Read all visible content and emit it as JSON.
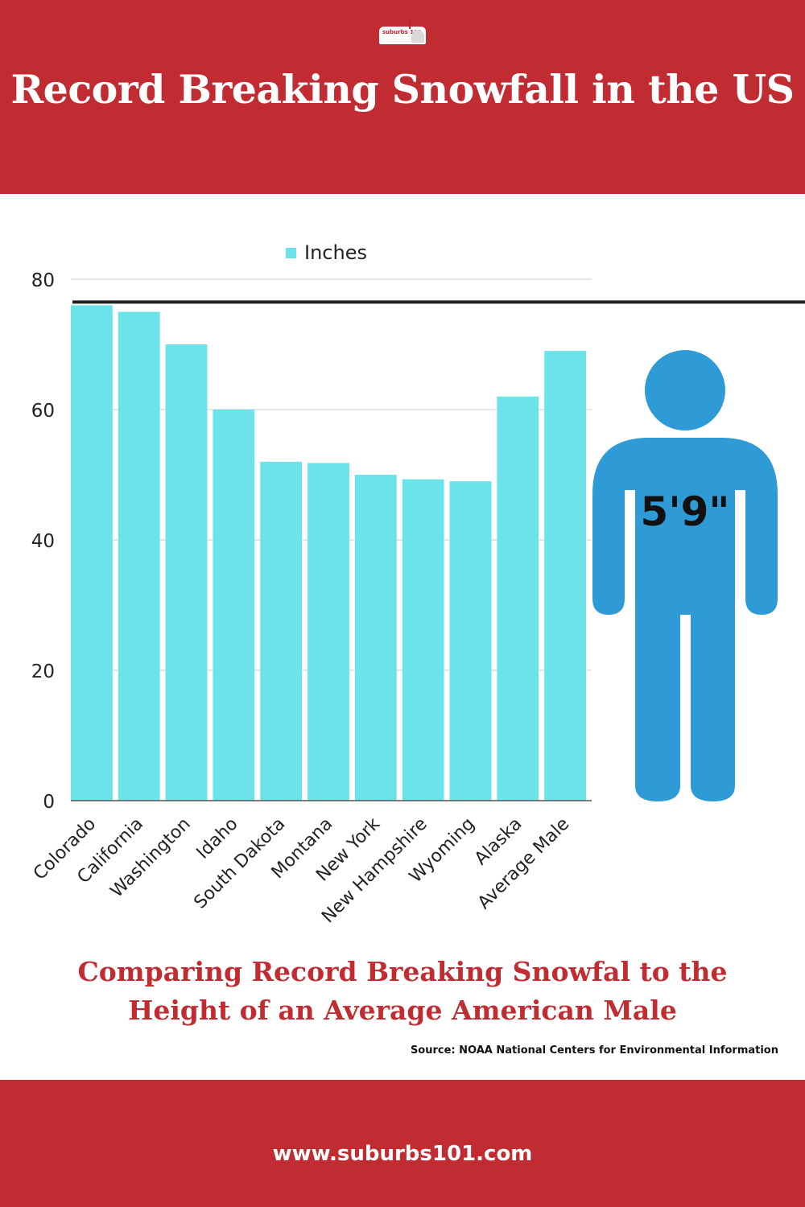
{
  "header": {
    "logo_text": "suburbs 101",
    "title": "Record Breaking Snowfall in the US"
  },
  "chart_data": {
    "type": "bar",
    "categories": [
      "Colorado",
      "California",
      "Washington",
      "Idaho",
      "South Dakota",
      "Montana",
      "New York",
      "New Hampshire",
      "Wyoming",
      "Alaska",
      "Average Male"
    ],
    "series": [
      {
        "name": "Inches",
        "values": [
          76,
          75,
          70,
          60,
          52,
          51.8,
          50,
          49.3,
          49,
          62,
          69
        ]
      }
    ],
    "ylim": [
      0,
      80
    ],
    "yticks": [
      0,
      20,
      40,
      60,
      80
    ],
    "ytick_labels": [
      "0",
      "20",
      "40",
      "60",
      "80"
    ],
    "grid": true,
    "legend": "top-center",
    "reference_line_value": 76.5,
    "bar_color": "#6ce3e8"
  },
  "figure": {
    "label": "5'9\"",
    "color": "#2e9bd6"
  },
  "subtitle": "Comparing Record Breaking Snowfal to the Height of an Average American Male",
  "source": "Source: NOAA National Centers for Environmental Information",
  "footer": {
    "url": "www.suburbs101.com"
  },
  "colors": {
    "brand_red": "#c12c32",
    "white": "#ffffff"
  }
}
